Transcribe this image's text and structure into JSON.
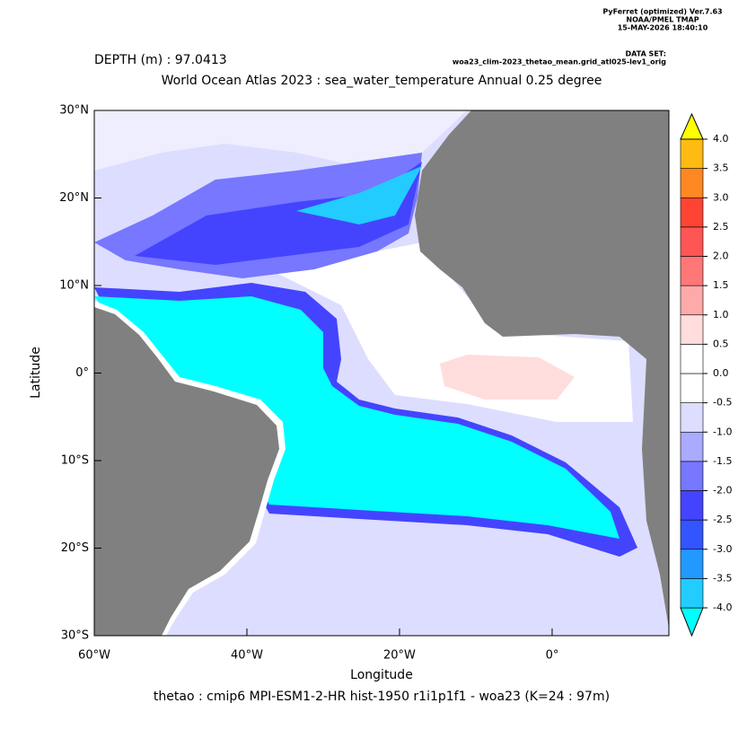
{
  "header": {
    "software": "PyFerret (optimized) Ver.7.63",
    "org": "NOAA/PMEL TMAP",
    "timestamp": "15-MAY-2026 18:40:10",
    "dataset_label": "DATA SET:",
    "dataset": "woa23_clim-2023_thetao_mean.grid_atl025-lev1_orig"
  },
  "depth_label": "DEPTH (m) : 97.0413",
  "title": "World Ocean Atlas 2023 : sea_water_temperature Annual  0.25 degree",
  "footer": "thetao : cmip6 MPI-ESM1-2-HR hist-1950 r1i1p1f1 - woa23  (K=24 : 97m)",
  "map": {
    "xlabel": "Longitude",
    "ylabel": "Latitude",
    "xlim": [
      -60,
      15.3
    ],
    "ylim": [
      -30,
      30
    ],
    "xticks": [
      {
        "value": -60,
        "label": "60°W"
      },
      {
        "value": -40,
        "label": "40°W"
      },
      {
        "value": -20,
        "label": "20°W"
      },
      {
        "value": 0,
        "label": "0°"
      }
    ],
    "yticks": [
      {
        "value": 30,
        "label": "30°N"
      },
      {
        "value": 20,
        "label": "20°N"
      },
      {
        "value": 10,
        "label": "10°N"
      },
      {
        "value": 0,
        "label": "0°"
      },
      {
        "value": -10,
        "label": "10°S"
      },
      {
        "value": -20,
        "label": "20°S"
      },
      {
        "value": -30,
        "label": "30°S"
      }
    ]
  },
  "colorbar": {
    "levels": [
      {
        "value": -4,
        "label": "-4.0"
      },
      {
        "value": -3.5,
        "label": "-3.5"
      },
      {
        "value": -3,
        "label": "-3.0"
      },
      {
        "value": -2.5,
        "label": "-2.5"
      },
      {
        "value": -2,
        "label": "-2.0"
      },
      {
        "value": -1.5,
        "label": "-1.5"
      },
      {
        "value": -1,
        "label": "-1.0"
      },
      {
        "value": -0.5,
        "label": "-0.5"
      },
      {
        "value": 0,
        "label": "0.0"
      },
      0.5,
      {
        "value": 1,
        "label": "1.0"
      },
      1.5,
      {
        "value": 2,
        "label": "2.0"
      },
      2.5,
      {
        "value": 3,
        "label": "3.0"
      },
      3.5,
      {
        "value": 4,
        "label": "4.0"
      }
    ],
    "colors": [
      "#00ffff",
      "#22ccff",
      "#2299ff",
      "#3355ff",
      "#4444ff",
      "#7777ff",
      "#aaaaff",
      "#ddddff",
      "#ffffff",
      "#ffffff",
      "#ffdddd",
      "#ffaaaa",
      "#ff7777",
      "#ff5555",
      "#ff4433",
      "#ff8822",
      "#ffbb11",
      "#ffff00"
    ]
  }
}
